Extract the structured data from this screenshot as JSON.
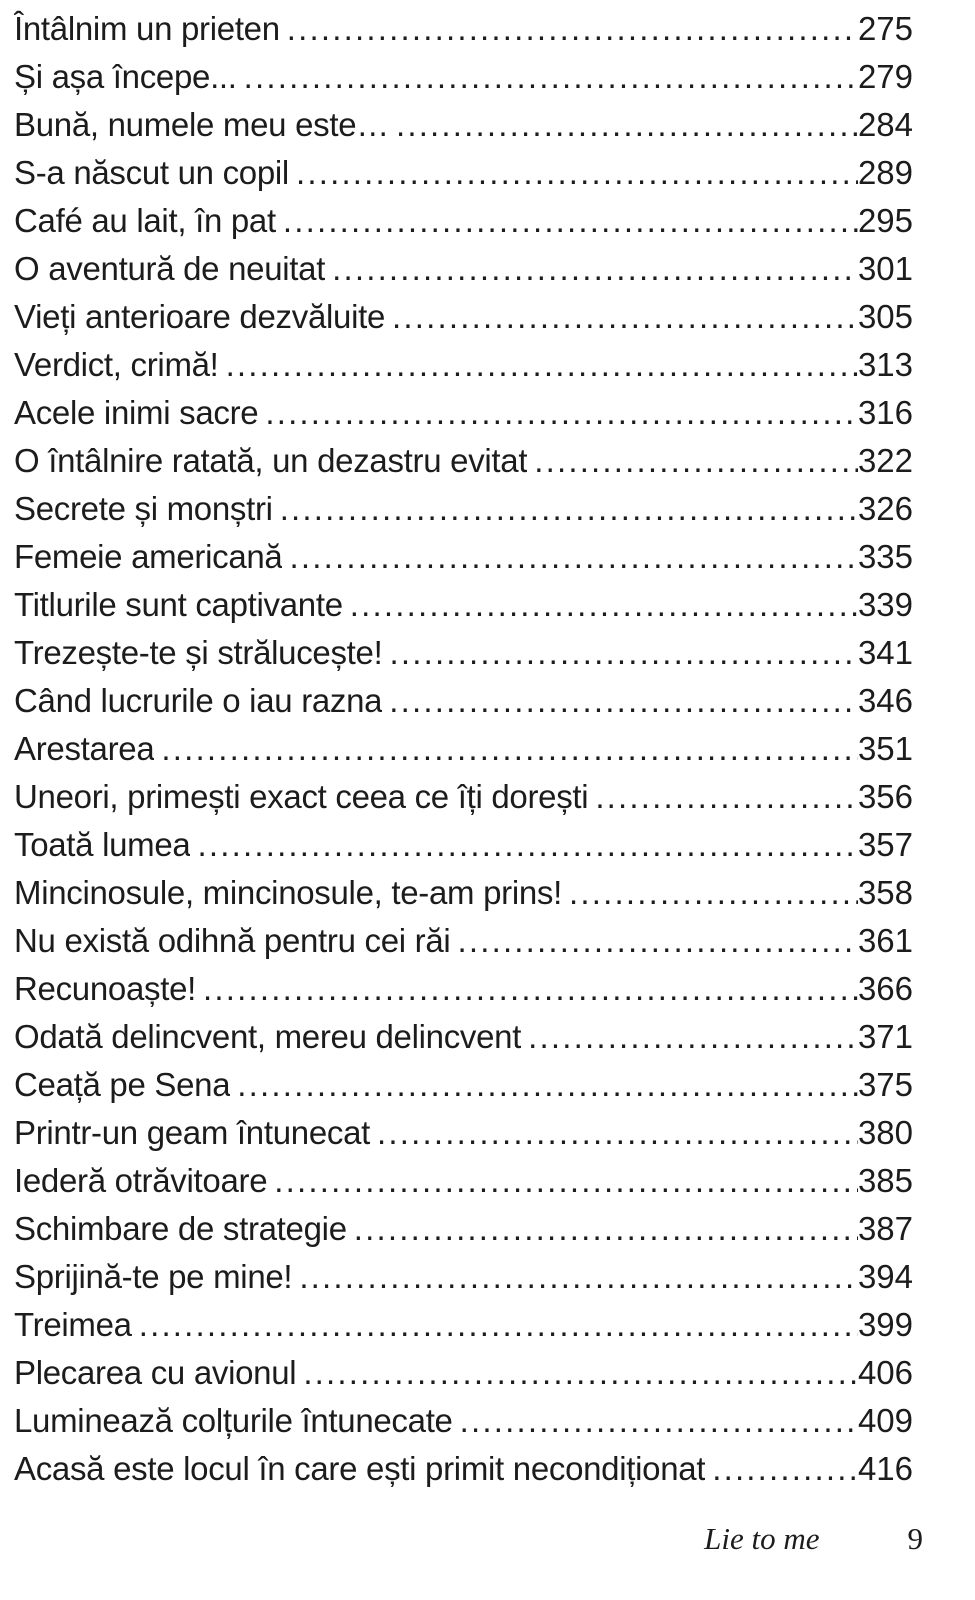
{
  "toc": {
    "entries": [
      {
        "title": "Întâlnim un prieten",
        "page": "275"
      },
      {
        "title": "Și așa începe...",
        "page": "279"
      },
      {
        "title": "Bună, numele meu este…",
        "page": "284"
      },
      {
        "title": "S-a născut un copil",
        "page": "289"
      },
      {
        "title": "Café au lait, în pat",
        "page": "295"
      },
      {
        "title": "O aventură de neuitat",
        "page": "301"
      },
      {
        "title": "Vieți anterioare dezvăluite",
        "page": "305"
      },
      {
        "title": "Verdict, crimă!",
        "page": "313"
      },
      {
        "title": "Acele inimi sacre",
        "page": "316"
      },
      {
        "title": "O întâlnire ratată, un dezastru evitat",
        "page": "322"
      },
      {
        "title": "Secrete și monștri",
        "page": "326"
      },
      {
        "title": "Femeie americană",
        "page": "335"
      },
      {
        "title": "Titlurile sunt captivante",
        "page": "339"
      },
      {
        "title": "Trezește-te și strălucește!",
        "page": "341"
      },
      {
        "title": "Când lucrurile o iau razna",
        "page": "346"
      },
      {
        "title": "Arestarea",
        "page": "351"
      },
      {
        "title": "Uneori, primești exact ceea ce îți dorești",
        "page": "356"
      },
      {
        "title": "Toată lumea",
        "page": "357"
      },
      {
        "title": "Mincinosule, mincinosule, te-am prins!",
        "page": "358"
      },
      {
        "title": "Nu există odihnă pentru cei răi",
        "page": "361"
      },
      {
        "title": "Recunoaște!",
        "page": "366"
      },
      {
        "title": "Odată delincvent, mereu delincvent",
        "page": "371"
      },
      {
        "title": "Ceață pe Sena",
        "page": "375"
      },
      {
        "title": "Printr-un geam întunecat",
        "page": "380"
      },
      {
        "title": "Iederă otrăvitoare",
        "page": "385"
      },
      {
        "title": "Schimbare de strategie",
        "page": "387"
      },
      {
        "title": "Sprijină-te pe mine!",
        "page": "394"
      },
      {
        "title": "Treimea",
        "page": "399"
      },
      {
        "title": "Plecarea cu avionul",
        "page": "406"
      },
      {
        "title": "Luminează colțurile întunecate",
        "page": "409"
      },
      {
        "title": "Acasă este locul în care ești primit necondiționat",
        "page": "416"
      }
    ]
  },
  "footer": {
    "book_title": "Lie to me",
    "page_number": "9"
  }
}
